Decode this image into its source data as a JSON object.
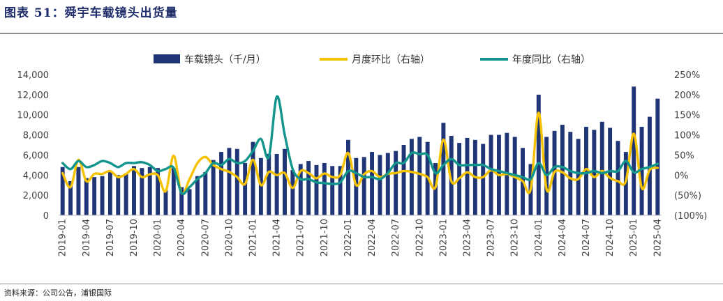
{
  "header": {
    "title": "图表 51：舜宇车载镜头出货量"
  },
  "footer": {
    "source": "资料来源：公司公告，浦银国际"
  },
  "chart_data": {
    "type": "bar",
    "legend": [
      "车载镜头（千/月）",
      "月度环比（右轴）",
      "年度同比（右轴）"
    ],
    "legend_position": "top",
    "colors": {
      "bar": "#1f3576",
      "mom": "#f5c200",
      "yoy": "#12958c"
    },
    "x": [
      "2019-01",
      "2019-02",
      "2019-03",
      "2019-04",
      "2019-05",
      "2019-06",
      "2019-07",
      "2019-08",
      "2019-09",
      "2019-10",
      "2019-11",
      "2019-12",
      "2020-01",
      "2020-02",
      "2020-03",
      "2020-04",
      "2020-05",
      "2020-06",
      "2020-07",
      "2020-08",
      "2020-09",
      "2020-10",
      "2020-11",
      "2020-12",
      "2021-01",
      "2021-02",
      "2021-03",
      "2021-04",
      "2021-05",
      "2021-06",
      "2021-07",
      "2021-08",
      "2021-09",
      "2021-10",
      "2021-11",
      "2021-12",
      "2022-01",
      "2022-02",
      "2022-03",
      "2022-04",
      "2022-05",
      "2022-06",
      "2022-07",
      "2022-08",
      "2022-09",
      "2022-10",
      "2022-11",
      "2022-12",
      "2023-01",
      "2023-02",
      "2023-03",
      "2023-04",
      "2023-05",
      "2023-06",
      "2023-07",
      "2023-08",
      "2023-09",
      "2023-10",
      "2023-11",
      "2023-12",
      "2024-01",
      "2024-02",
      "2024-03",
      "2024-04",
      "2024-05",
      "2024-06",
      "2024-07",
      "2024-08",
      "2024-09",
      "2024-10",
      "2024-11",
      "2024-12",
      "2025-01",
      "2025-02",
      "2025-03",
      "2025-04"
    ],
    "x_tick_labels": [
      "2019-01",
      "2019-04",
      "2019-07",
      "2019-10",
      "2020-01",
      "2020-04",
      "2020-07",
      "2020-10",
      "2021-01",
      "2021-04",
      "2021-07",
      "2021-10",
      "2022-01",
      "2022-04",
      "2022-07",
      "2022-10",
      "2023-01",
      "2023-04",
      "2023-07",
      "2023-10",
      "2024-01",
      "2024-04",
      "2024-07",
      "2024-10",
      "2025-01",
      "2025-04"
    ],
    "series": [
      {
        "name": "车载镜头（千/月）",
        "axis": "left",
        "kind": "bar",
        "values": [
          4800,
          3400,
          4800,
          3700,
          3800,
          3900,
          4300,
          4000,
          4100,
          4900,
          4700,
          4800,
          4700,
          2500,
          4700,
          2800,
          2600,
          3900,
          4300,
          5500,
          6300,
          6700,
          6600,
          5200,
          7300,
          5700,
          6100,
          6100,
          6600,
          4500,
          5100,
          5400,
          5000,
          5200,
          4900,
          4900,
          7500,
          5700,
          5800,
          6300,
          6000,
          6200,
          6400,
          7000,
          7600,
          7800,
          7300,
          5200,
          9200,
          7900,
          7200,
          7700,
          7500,
          7100,
          8000,
          8000,
          8200,
          7800,
          6700,
          5100,
          12000,
          7800,
          8400,
          9000,
          8300,
          7600,
          8800,
          8500,
          9300,
          8700,
          7400,
          6300,
          12800,
          8800,
          9800,
          11600
        ]
      },
      {
        "name": "月度环比（右轴）",
        "axis": "right",
        "kind": "line",
        "values": [
          5,
          -30,
          38,
          -15,
          3,
          3,
          10,
          -5,
          3,
          15,
          -5,
          2,
          0,
          -40,
          48,
          -45,
          -10,
          30,
          45,
          25,
          15,
          8,
          -5,
          -22,
          38,
          -25,
          8,
          0,
          5,
          -32,
          10,
          5,
          -8,
          4,
          -5,
          0,
          55,
          -25,
          2,
          10,
          -5,
          3,
          5,
          10,
          8,
          3,
          -5,
          -30,
          88,
          -15,
          -8,
          7,
          -5,
          -5,
          12,
          0,
          3,
          -5,
          -15,
          -35,
          155,
          -35,
          8,
          7,
          -8,
          -10,
          15,
          -5,
          10,
          -7,
          -15,
          -15,
          103,
          -32,
          13,
          18
        ]
      },
      {
        "name": "年度同比（右轴）",
        "axis": "right",
        "kind": "line",
        "values": [
          30,
          15,
          35,
          20,
          25,
          35,
          30,
          20,
          30,
          30,
          32,
          25,
          10,
          15,
          18,
          -45,
          -30,
          -10,
          5,
          30,
          25,
          40,
          30,
          35,
          60,
          90,
          45,
          195,
          100,
          15,
          -10,
          -10,
          -18,
          -20,
          -22,
          -18,
          10,
          5,
          -5,
          -5,
          -10,
          5,
          30,
          30,
          55,
          52,
          50,
          5,
          25,
          40,
          25,
          25,
          25,
          25,
          15,
          10,
          5,
          0,
          -5,
          -10,
          30,
          0,
          20,
          20,
          10,
          5,
          5,
          10,
          5,
          10,
          10,
          35,
          7,
          15,
          20,
          28
        ]
      }
    ],
    "y_left": {
      "min": 0,
      "max": 14000,
      "ticks": [
        "0",
        "2,000",
        "4,000",
        "6,000",
        "8,000",
        "10,000",
        "12,000",
        "14,000"
      ]
    },
    "y_right": {
      "min": -100,
      "max": 250,
      "ticks": [
        "(100%)",
        "(50%)",
        "0%",
        "50%",
        "100%",
        "150%",
        "200%",
        "250%"
      ]
    },
    "grid": false
  }
}
